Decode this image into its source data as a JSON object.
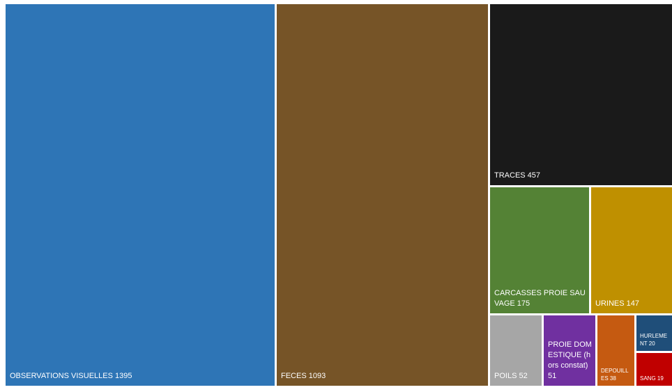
{
  "chart_data": {
    "type": "treemap",
    "items": [
      {
        "label": "OBSERVATIONS VISUELLES 1395",
        "name": "OBSERVATIONS VISUELLES",
        "value": 1395,
        "color": "#2e75b6"
      },
      {
        "label": "FECES 1093",
        "name": "FECES",
        "value": 1093,
        "color": "#765427"
      },
      {
        "label": "TRACES 457",
        "name": "TRACES",
        "value": 457,
        "color": "#1a1a1a"
      },
      {
        "label": "CARCASSES PROIE SAUVAGE 175",
        "name": "CARCASSES PROIE SAUVAGE",
        "value": 175,
        "color": "#548235"
      },
      {
        "label": "URINES 147",
        "name": "URINES",
        "value": 147,
        "color": "#bf9000"
      },
      {
        "label": "POILS 52",
        "name": "POILS",
        "value": 52,
        "color": "#a6a6a6"
      },
      {
        "label": "PROIE DOMESTIQUE (hors constat) 51",
        "name": "PROIE DOMESTIQUE (hors constat)",
        "value": 51,
        "color": "#7030a0"
      },
      {
        "label": "DEPOUILLES 38",
        "name": "DEPOUILLES",
        "value": 38,
        "color": "#c55a11"
      },
      {
        "label": "HURLEMENT 20",
        "name": "HURLEMENT",
        "value": 20,
        "color": "#1f4e79"
      },
      {
        "label": "SANG 19",
        "name": "SANG",
        "value": 19,
        "color": "#c00000"
      }
    ]
  }
}
